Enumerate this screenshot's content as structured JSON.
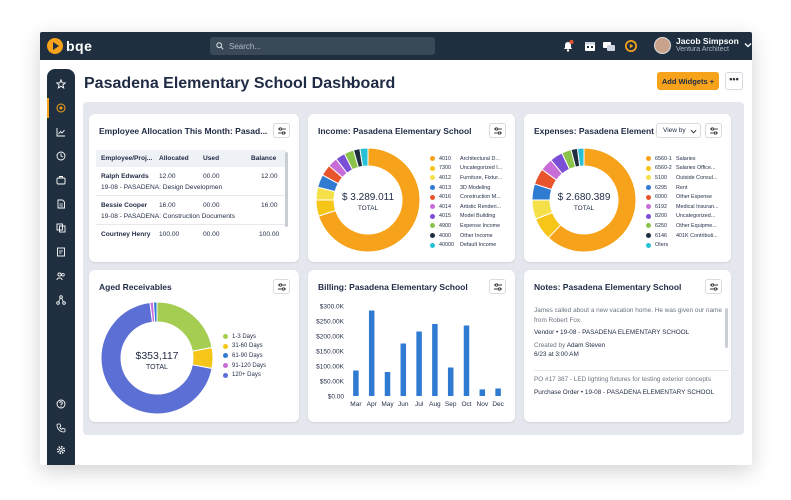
{
  "topbar": {
    "logo": "bqe",
    "search_placeholder": "Search...",
    "user_name": "Jacob Simpson",
    "user_role": "Ventura Architect"
  },
  "header": {
    "title": "Pasadena Elementary School Dashboard",
    "add_widgets": "Add Widgets  +",
    "more": "•••"
  },
  "colors": {
    "accent": "#f7a21b",
    "nav": "#1f2f3f",
    "bar": "#2f7bd1"
  },
  "allocation": {
    "title": "Employee Allocation This Month: Pasad...",
    "columns": [
      "Employee/Proj...",
      "Allocated",
      "Used",
      "Balance"
    ],
    "rows": [
      {
        "name": "Ralph Edwards",
        "allocated": "12.00",
        "used": "00.00",
        "balance": "12.00",
        "project": "19-08 - PASADENA: Design Developmen"
      },
      {
        "name": "Bessie Cooper",
        "allocated": "16.00",
        "used": "00.00",
        "balance": "16.00",
        "project": "19-08 - PASADENA: Construction Documents"
      },
      {
        "name": "Courtney Henry",
        "allocated": "100.00",
        "used": "00.00",
        "balance": "100.00",
        "project": ""
      }
    ]
  },
  "income": {
    "title": "Income: Pasadena Elementary School",
    "total_value": "$ 3.289.011",
    "total_label": "TOTAL",
    "legend": [
      {
        "code": "4010",
        "label": "Architectural D...",
        "color": "#f7a21b"
      },
      {
        "code": "7300",
        "label": "Uncategorized I...",
        "color": "#f5c518"
      },
      {
        "code": "4012",
        "label": "Furniture, Fixtur...",
        "color": "#f5e04a"
      },
      {
        "code": "4013",
        "label": "3D Modeling",
        "color": "#2f7bd1"
      },
      {
        "code": "4016",
        "label": "Construction M...",
        "color": "#e8542c"
      },
      {
        "code": "4014",
        "label": "Artistic Renderi...",
        "color": "#c86dd7"
      },
      {
        "code": "4015",
        "label": "Model Building",
        "color": "#7a4fd6"
      },
      {
        "code": "4900",
        "label": "Expense Income",
        "color": "#8bc34a"
      },
      {
        "code": "4000",
        "label": "Other Income",
        "color": "#1f2f3f"
      },
      {
        "code": "40000",
        "label": "Default Income",
        "color": "#27c0d6"
      }
    ]
  },
  "expenses": {
    "title": "Expenses: Pasadena Element...",
    "view_by": "View by",
    "total_value": "$ 2.680.389",
    "total_label": "TOTAL",
    "legend": [
      {
        "code": "6560-1",
        "label": "Salaries",
        "color": "#f7a21b"
      },
      {
        "code": "6560-2",
        "label": "Salaries Office...",
        "color": "#f5c518"
      },
      {
        "code": "5100",
        "label": "Outside Consul...",
        "color": "#f5e04a"
      },
      {
        "code": "6295",
        "label": "Rent",
        "color": "#2f7bd1"
      },
      {
        "code": "6000",
        "label": "Other Expense",
        "color": "#e8542c"
      },
      {
        "code": "6192",
        "label": "Medical Insuran...",
        "color": "#c86dd7"
      },
      {
        "code": "8200",
        "label": "Uncategorized...",
        "color": "#7a4fd6"
      },
      {
        "code": "6250",
        "label": "Other Equipme...",
        "color": "#8bc34a"
      },
      {
        "code": "6146",
        "label": "401K Contributi...",
        "color": "#1f2f3f"
      },
      {
        "code": "Oters",
        "label": "",
        "color": "#27c0d6"
      }
    ]
  },
  "aged": {
    "title": "Aged Receivables",
    "total_value": "$353,117",
    "total_label": "TOTAL",
    "legend": [
      {
        "label": "1-3 Days",
        "color": "#a4cd52"
      },
      {
        "label": "31-60 Days",
        "color": "#f5c518"
      },
      {
        "label": "61-90 Days",
        "color": "#2f7bd1"
      },
      {
        "label": "91-120 Days",
        "color": "#c86dd7"
      },
      {
        "label": "120+ Days",
        "color": "#5b6fd4"
      }
    ]
  },
  "billing": {
    "title": "Billing: Pasadena Elementary School"
  },
  "chart_data": {
    "type": "bar",
    "categories": [
      "Mar",
      "Apr",
      "May",
      "Jun",
      "Jul",
      "Aug",
      "Sep",
      "Oct",
      "Nov",
      "Dec"
    ],
    "values": [
      85000,
      285000,
      80000,
      175000,
      215000,
      240000,
      95000,
      235000,
      22000,
      25000
    ],
    "ylim": [
      0,
      300000
    ],
    "yticks": [
      "$0.00",
      "$50.00K",
      "$100.00K",
      "$150.00K",
      "$200.00K",
      "$250.00K",
      "$300.0K"
    ],
    "grid": false
  },
  "notes": {
    "title": "Notes: Pasadena Elementary School",
    "items": [
      {
        "body": "James called about a new vacation home. He was given our name from Robert Fox.",
        "ref": "Vendor • 19-08 - PASADENA ELEMENTARY SCHOOL",
        "created_by_label": "Created by",
        "created_by": "Adam Steven",
        "time": "6/23 at 3:00 AM"
      },
      {
        "body": "PO #17 387 - LED lighting fixtures for testing exterior concepts",
        "ref": "Purchase Order • 19-08 - PASADENA ELEMENTARY SCHOOL"
      }
    ]
  }
}
